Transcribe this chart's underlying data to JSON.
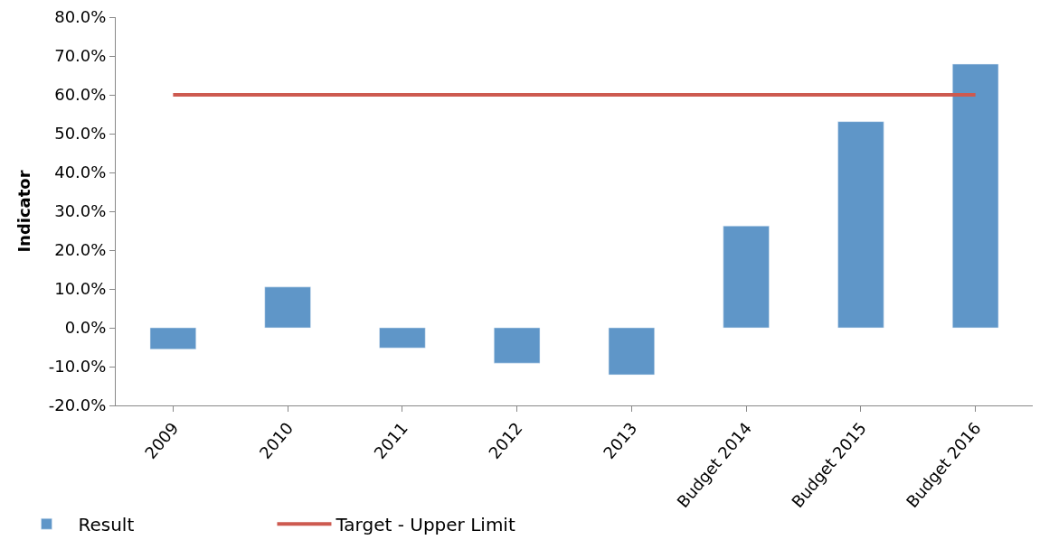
{
  "chart_data": {
    "type": "bar",
    "ylabel": "Indicator",
    "categories": [
      "2009",
      "2010",
      "2011",
      "2012",
      "2013",
      "Budget 2014",
      "Budget 2015",
      "Budget 2016"
    ],
    "series": [
      {
        "name": "Result",
        "color": "#5f96c8",
        "values": [
          -5.5,
          10.5,
          -5.2,
          -9.1,
          -12.1,
          26.2,
          53.1,
          67.9
        ]
      },
      {
        "name": "Target - Upper Limit",
        "type": "line",
        "color": "#cd5a50",
        "values": [
          60,
          60,
          60,
          60,
          60,
          60,
          60,
          60
        ]
      }
    ],
    "ylim": [
      -20,
      80
    ],
    "yticks": [
      {
        "value": -20,
        "label": "-20.0%"
      },
      {
        "value": -10,
        "label": "-10.0%"
      },
      {
        "value": 0,
        "label": "0.0%"
      },
      {
        "value": 10,
        "label": "10.0%"
      },
      {
        "value": 20,
        "label": "20.0%"
      },
      {
        "value": 30,
        "label": "30.0%"
      },
      {
        "value": 40,
        "label": "40.0%"
      },
      {
        "value": 50,
        "label": "50.0%"
      },
      {
        "value": 60,
        "label": "60.0%"
      },
      {
        "value": 70,
        "label": "70.0%"
      },
      {
        "value": 80,
        "label": "80.0%"
      }
    ],
    "legend": "bottom left",
    "marker": "none",
    "line_style": "solid"
  }
}
